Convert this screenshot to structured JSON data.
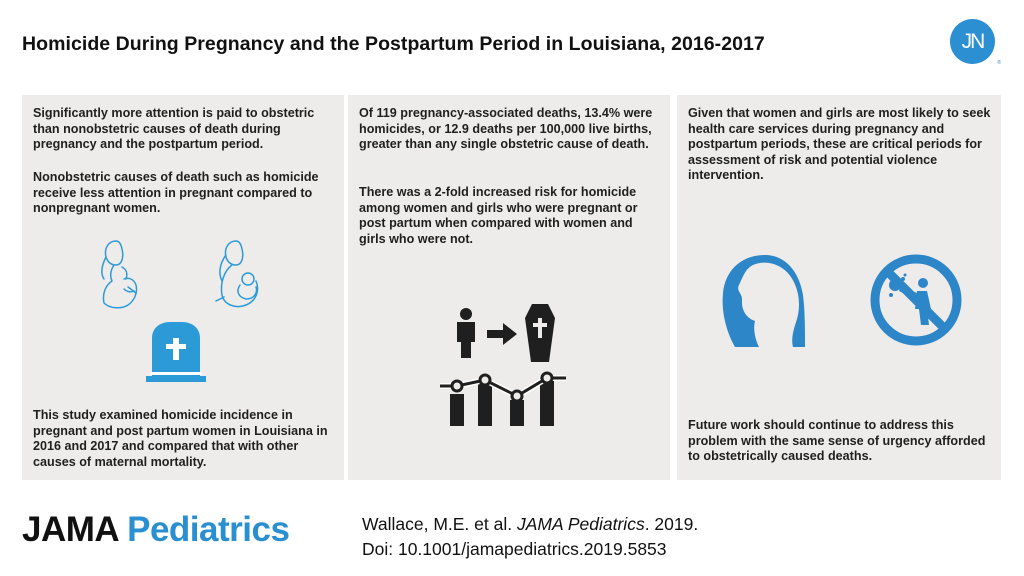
{
  "header": {
    "title": "Homicide During Pregnancy and the Postpartum Period in Louisiana, 2016-2017",
    "logo_text": "JN",
    "logo_tm": "®"
  },
  "panel1": {
    "para1": "Significantly more attention is paid to obstetric than nonobstetric causes of death during pregnancy and the postpartum period.",
    "para2": "Nonobstetric causes of death such as homicide receive less attention in pregnant compared to nonpregnant women.",
    "para3": "This study examined homicide incidence in pregnant and post partum women in Louisiana in 2016 and 2017 and compared that with other causes of maternal mortality.",
    "icons": [
      "pregnant-woman-icon",
      "mother-holding-baby-icon",
      "gravestone-icon"
    ]
  },
  "panel2": {
    "para1": "Of 119 pregnancy-associated deaths, 13.4% were homicides, or 12.9 deaths per 100,000 live births, greater than any single obstetric cause of death.",
    "para2": "There was a 2-fold increased risk for homicide among women and girls who were pregnant or post partum when compared with women and girls who were not.",
    "icons": [
      "person-icon",
      "arrow-right-icon",
      "coffin-icon",
      "trend-chart-icon"
    ]
  },
  "panel3": {
    "para1": "Given that women and girls are most likely to seek health care services during pregnancy and postpartum periods, these are critical periods for assessment of risk and potential violence intervention.",
    "para2": "Future work should continue to address this problem with the same sense of urgency afforded to obstetrically caused deaths.",
    "icons": [
      "woman-head-profile-icon",
      "no-violence-icon"
    ]
  },
  "footer": {
    "journal_part1": "JAMA",
    "journal_part2": "Pediatrics",
    "citation_authors": "Wallace, M.E. et al.",
    "citation_journal": "JAMA Pediatrics",
    "citation_year": ". 2019.",
    "doi": "Doi: 10.1001/jamapediatrics.2019.5853"
  },
  "colors": {
    "accent": "#2a8fd0",
    "panel_bg": "#edecea",
    "text": "#1f1f1f"
  }
}
